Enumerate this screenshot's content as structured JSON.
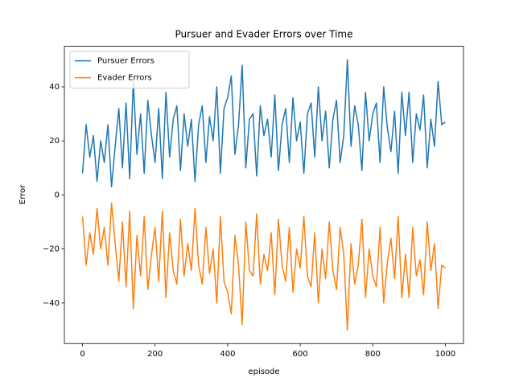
{
  "chart_data": {
    "type": "line",
    "title": "Pursuer and Evader Errors over Time",
    "x_label": "episode",
    "y_label": "Error",
    "x": [
      0,
      10,
      20,
      30,
      40,
      50,
      60,
      70,
      80,
      90,
      100,
      110,
      120,
      130,
      140,
      150,
      160,
      170,
      180,
      190,
      200,
      210,
      220,
      230,
      240,
      250,
      260,
      270,
      280,
      290,
      300,
      310,
      320,
      330,
      340,
      350,
      360,
      370,
      380,
      390,
      400,
      410,
      420,
      430,
      440,
      450,
      460,
      470,
      480,
      490,
      500,
      510,
      520,
      530,
      540,
      550,
      560,
      570,
      580,
      590,
      600,
      610,
      620,
      630,
      640,
      650,
      660,
      670,
      680,
      690,
      700,
      710,
      720,
      730,
      740,
      750,
      760,
      770,
      780,
      790,
      800,
      810,
      820,
      830,
      840,
      850,
      860,
      870,
      880,
      890,
      900,
      910,
      920,
      930,
      940,
      950,
      960,
      970,
      980,
      990,
      1000
    ],
    "series": [
      {
        "name": "Pursuer Errors",
        "color": "#1f77b4",
        "values": [
          8,
          26,
          14,
          22,
          5,
          20,
          12,
          26,
          3,
          18,
          32,
          10,
          34,
          6,
          42,
          15,
          30,
          8,
          35,
          22,
          12,
          32,
          6,
          38,
          14,
          28,
          33,
          9,
          30,
          18,
          28,
          5,
          26,
          33,
          12,
          29,
          20,
          40,
          8,
          32,
          36,
          44,
          15,
          26,
          48,
          10,
          28,
          30,
          7,
          33,
          22,
          28,
          14,
          37,
          9,
          26,
          32,
          12,
          36,
          20,
          27,
          8,
          30,
          34,
          14,
          40,
          20,
          31,
          10,
          28,
          35,
          12,
          22,
          50,
          18,
          33,
          26,
          9,
          38,
          20,
          30,
          34,
          12,
          40,
          25,
          16,
          31,
          8,
          38,
          22,
          38,
          12,
          30,
          24,
          37,
          10,
          28,
          18,
          42,
          26,
          27
        ]
      },
      {
        "name": "Evader Errors",
        "color": "#ff7f0e",
        "values": [
          -8,
          -26,
          -14,
          -22,
          -5,
          -20,
          -12,
          -26,
          -3,
          -18,
          -32,
          -10,
          -34,
          -6,
          -42,
          -15,
          -30,
          -8,
          -35,
          -22,
          -12,
          -32,
          -6,
          -38,
          -14,
          -28,
          -33,
          -9,
          -30,
          -18,
          -28,
          -5,
          -26,
          -33,
          -12,
          -29,
          -20,
          -40,
          -8,
          -32,
          -36,
          -44,
          -15,
          -26,
          -48,
          -10,
          -28,
          -30,
          -7,
          -33,
          -22,
          -28,
          -14,
          -37,
          -9,
          -26,
          -32,
          -12,
          -36,
          -20,
          -27,
          -8,
          -30,
          -34,
          -14,
          -40,
          -20,
          -31,
          -10,
          -28,
          -35,
          -12,
          -22,
          -50,
          -18,
          -33,
          -26,
          -9,
          -38,
          -20,
          -30,
          -34,
          -12,
          -40,
          -25,
          -16,
          -31,
          -8,
          -38,
          -22,
          -38,
          -12,
          -30,
          -24,
          -37,
          -10,
          -28,
          -18,
          -42,
          -26,
          -27
        ]
      }
    ],
    "xlim": [
      -50,
      1050
    ],
    "ylim": [
      -55,
      55
    ],
    "xticks": [
      0,
      200,
      400,
      600,
      800,
      1000
    ],
    "yticks": [
      {
        "value": -40,
        "label": "−40"
      },
      {
        "value": -20,
        "label": "−20"
      },
      0,
      20,
      40
    ],
    "legend": "upper left"
  }
}
